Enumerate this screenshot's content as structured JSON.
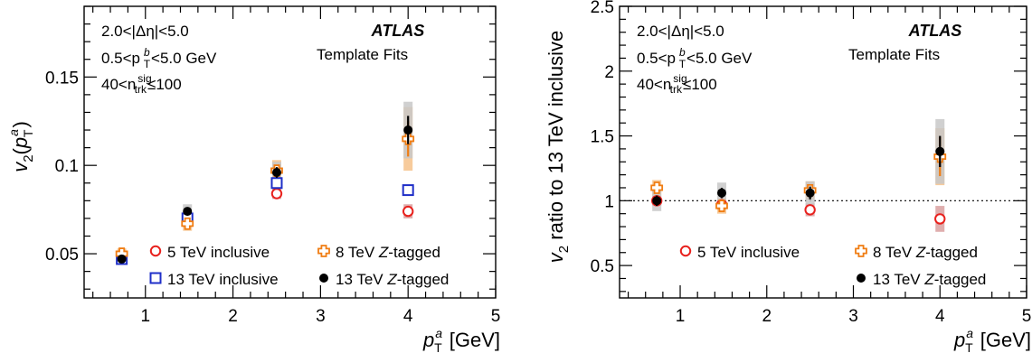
{
  "series_styles": {
    "5 TeV inclusive": {
      "color": "#e8211d",
      "marker": "open-circle",
      "band": "#d9a0a0"
    },
    "13 TeV inclusive": {
      "color": "#1f2fc8",
      "marker": "open-square",
      "band": "#b7bfe6"
    },
    "8 TeV Z-tagged": {
      "color": "#f07d13",
      "marker": "cross",
      "band": "#f6c28b"
    },
    "13 TeV Z-tagged": {
      "color": "#000000",
      "marker": "filled-circle",
      "band": "#c8c8c8"
    }
  },
  "chart_data": [
    {
      "type": "scatter",
      "panel": "left",
      "title": "",
      "xlabel": "p_T^a [GeV]",
      "ylabel": "v_2(p_T^a)",
      "xlim": [
        0.3,
        5.0
      ],
      "ylim": [
        0.025,
        0.19
      ],
      "xticks": [
        1,
        2,
        3,
        4,
        5
      ],
      "yticks": [
        0.05,
        0.1,
        0.15
      ],
      "ytick_labels": [
        "0.05",
        "0.1",
        "0.15"
      ],
      "annotations": {
        "line1": "2.0<|Δη|<5.0",
        "line2_pre": "0.5<p",
        "line2_post": "<5.0 GeV",
        "line3_pre": "40<n",
        "line3_post": "≤100",
        "atlas": "ATLAS",
        "method": "Template Fits"
      },
      "legend": [
        {
          "name": "5 TeV inclusive",
          "pos": "col1-row1"
        },
        {
          "name": "13 TeV inclusive",
          "pos": "col1-row2"
        },
        {
          "name": "8 TeV Z-tagged",
          "pos": "col2-row1"
        },
        {
          "name": "13 TeV Z-tagged",
          "pos": "col2-row2"
        }
      ],
      "series": [
        {
          "name": "5 TeV inclusive",
          "x": [
            0.73,
            1.48,
            2.5,
            4.0
          ],
          "y": [
            0.047,
            0.068,
            0.084,
            0.074
          ],
          "sys": [
            0.002,
            0.003,
            0.003,
            0.004
          ],
          "stat": [
            0.001,
            0.001,
            0.001,
            0.002
          ]
        },
        {
          "name": "13 TeV inclusive",
          "x": [
            0.73,
            1.48,
            2.5,
            4.0
          ],
          "y": [
            0.047,
            0.07,
            0.09,
            0.086
          ],
          "sys": [
            0.001,
            0.002,
            0.002,
            0.002
          ],
          "stat": [
            0.0005,
            0.0005,
            0.0008,
            0.001
          ]
        },
        {
          "name": "8 TeV Z-tagged",
          "x": [
            0.73,
            1.48,
            2.5,
            4.0
          ],
          "y": [
            0.05,
            0.067,
            0.097,
            0.115
          ],
          "sys": [
            0.003,
            0.004,
            0.006,
            0.018
          ],
          "stat": [
            0.002,
            0.002,
            0.003,
            0.01
          ]
        },
        {
          "name": "13 TeV Z-tagged",
          "x": [
            0.73,
            1.48,
            2.5,
            4.0
          ],
          "y": [
            0.047,
            0.074,
            0.096,
            0.12
          ],
          "sys": [
            0.003,
            0.004,
            0.006,
            0.016
          ],
          "stat": [
            0.002,
            0.002,
            0.003,
            0.008
          ]
        }
      ]
    },
    {
      "type": "scatter",
      "panel": "right",
      "title": "",
      "xlabel": "p_T^a [GeV]",
      "ylabel": "v_2 ratio to 13 TeV inclusive",
      "xlim": [
        0.3,
        5.0
      ],
      "ylim": [
        0.25,
        2.5
      ],
      "xticks": [
        1,
        2,
        3,
        4,
        5
      ],
      "yticks": [
        0.5,
        1,
        1.5,
        2,
        2.5
      ],
      "ytick_labels": [
        "0.5",
        "1",
        "1.5",
        "2",
        "2.5"
      ],
      "reference_line": 1,
      "annotations": {
        "line1": "2.0<|Δη|<5.0",
        "line2_pre": "0.5<p",
        "line2_post": "<5.0 GeV",
        "line3_pre": "40<n",
        "line3_post": "≤100",
        "atlas": "ATLAS",
        "method": "Template Fits"
      },
      "legend": [
        {
          "name": "5 TeV inclusive",
          "pos": "col1-row1"
        },
        {
          "name": "8 TeV Z-tagged",
          "pos": "col2-row1"
        },
        {
          "name": "13 TeV Z-tagged",
          "pos": "col2-row2"
        }
      ],
      "series": [
        {
          "name": "5 TeV inclusive",
          "x": [
            0.73,
            1.48,
            2.5,
            4.0
          ],
          "y": [
            1.0,
            0.97,
            0.93,
            0.86
          ],
          "sys": [
            0.04,
            0.04,
            0.05,
            0.1
          ],
          "stat": [
            0.02,
            0.02,
            0.02,
            0.04
          ]
        },
        {
          "name": "8 TeV Z-tagged",
          "x": [
            0.73,
            1.48,
            2.5,
            4.0
          ],
          "y": [
            1.1,
            0.96,
            1.08,
            1.34
          ],
          "sys": [
            0.06,
            0.06,
            0.07,
            0.22
          ],
          "stat": [
            0.03,
            0.03,
            0.04,
            0.15
          ]
        },
        {
          "name": "13 TeV Z-tagged",
          "x": [
            0.73,
            1.48,
            2.5,
            4.0
          ],
          "y": [
            1.0,
            1.06,
            1.06,
            1.38
          ],
          "sys": [
            0.08,
            0.08,
            0.09,
            0.25
          ],
          "stat": [
            0.04,
            0.04,
            0.05,
            0.12
          ]
        }
      ]
    }
  ]
}
